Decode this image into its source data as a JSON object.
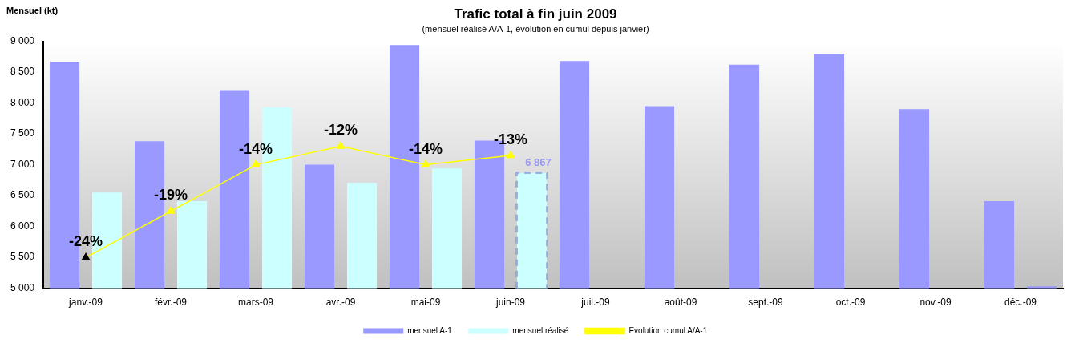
{
  "chart_data": {
    "type": "bar",
    "title": "Trafic total à fin juin 2009",
    "subtitle": "(mensuel réalisé A/A-1, évolution en cumul depuis janvier)",
    "ylabel": "Mensuel (kt)",
    "categories": [
      "janv.-09",
      "févr.-09",
      "mars-09",
      "avr.-09",
      "mai-09",
      "juin-09",
      "juil.-09",
      "août-09",
      "sept.-09",
      "oct.-09",
      "nov.-09",
      "déc.-09"
    ],
    "series": [
      {
        "name": "mensuel A-1",
        "color": "#9999ff",
        "values": [
          8670,
          7380,
          8210,
          7000,
          8940,
          7390,
          8680,
          7950,
          8620,
          8800,
          7900,
          6410
        ]
      },
      {
        "name": "mensuel réalisé",
        "color": "#ccffff",
        "colors": [
          "#ccffff",
          "#ccffff",
          "#ccffff",
          "#ccffff",
          "#ccffff",
          "#ccffff",
          "#ccffff",
          "#ccffff",
          "#ccffff",
          "#ccffff",
          "#ccffff",
          "#9999ff"
        ],
        "values": [
          6550,
          6410,
          7930,
          6710,
          6940,
          6867,
          null,
          null,
          null,
          null,
          null,
          5030
        ],
        "value_labels": [
          null,
          null,
          null,
          null,
          null,
          "6 867",
          null,
          null,
          null,
          null,
          null,
          null
        ]
      },
      {
        "name": "Evolution cumul A/A-1",
        "type": "line",
        "axis": "y2",
        "color": "#ffff00",
        "colors": [
          "#000000",
          "#ffff00",
          "#ffff00",
          "#ffff00",
          "#ffff00",
          "#ffff00",
          "#ffff00",
          "#ffff00",
          "#ffff00",
          "#ffff00",
          "#ffff00",
          "#ffff00"
        ],
        "values": [
          -24,
          -19,
          -14,
          -12,
          -14,
          -13,
          null,
          null,
          null,
          null,
          null,
          null
        ],
        "value_labels": [
          "-24%",
          "-19%",
          "-14%",
          "-12%",
          "-14%",
          "-13%",
          null,
          null,
          null,
          null,
          null,
          null
        ]
      }
    ],
    "ylim": [
      5000,
      9000
    ],
    "yticks": [
      {
        "value": 5000,
        "label": "5 000"
      },
      {
        "value": 5500,
        "label": "5 500"
      },
      {
        "value": 6000,
        "label": "6 000"
      },
      {
        "value": 6500,
        "label": "6 500"
      },
      {
        "value": 7000,
        "label": "7 000"
      },
      {
        "value": 7500,
        "label": "7 500"
      },
      {
        "value": 8000,
        "label": "8 000"
      },
      {
        "value": 8500,
        "label": "8 500"
      },
      {
        "value": 9000,
        "label": "9 000"
      }
    ],
    "y2lim": [
      -27.3,
      -0.7
    ],
    "grid": false,
    "legend": "bottom",
    "marker": "triangle",
    "line_style": "solid"
  }
}
